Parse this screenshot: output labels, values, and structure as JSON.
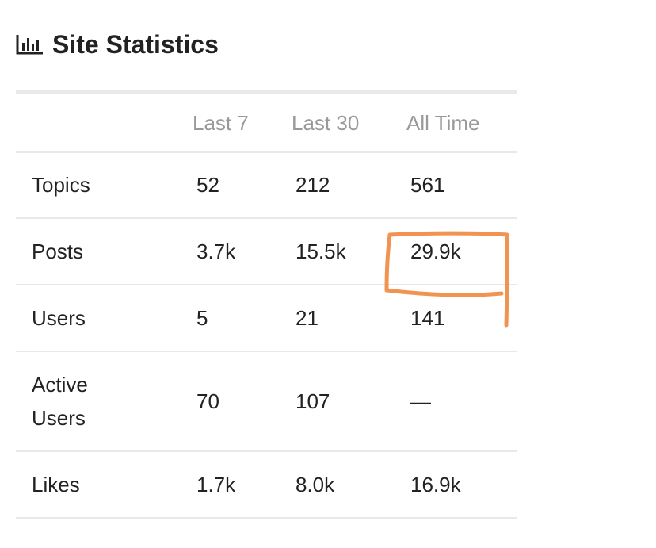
{
  "header": {
    "title": "Site Statistics"
  },
  "table": {
    "columns": [
      "Last 7",
      "Last 30",
      "All Time"
    ],
    "rows": [
      [
        "Topics",
        "52",
        "212",
        "561"
      ],
      [
        "Posts",
        "3.7k",
        "15.5k",
        "29.9k"
      ],
      [
        "Users",
        "5",
        "21",
        "141"
      ],
      [
        "Active Users",
        "70",
        "107",
        "—"
      ],
      [
        "Likes",
        "1.7k",
        "8.0k",
        "16.9k"
      ]
    ]
  }
}
